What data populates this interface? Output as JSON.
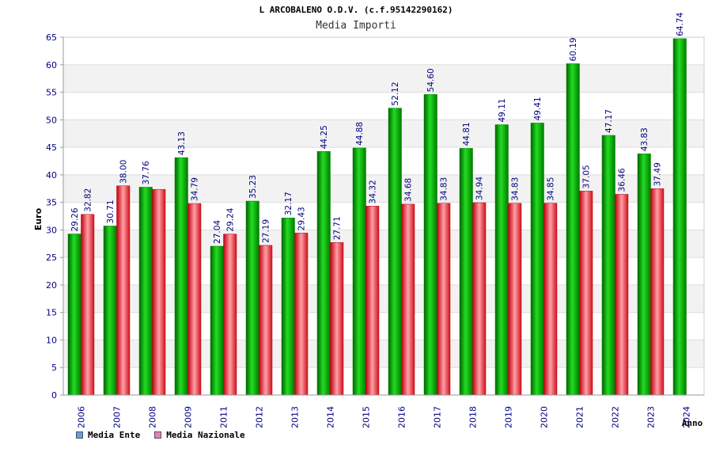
{
  "chart_data": {
    "type": "bar",
    "title": "L ARCOBALENO O.D.V. (c.f.95142290162)",
    "subtitle": "Media Importi",
    "ylabel": "Euro",
    "xlabel": "Anno",
    "ylim": [
      0,
      65
    ],
    "yticks": [
      "0",
      "5",
      "10",
      "15",
      "20",
      "25",
      "30",
      "35",
      "40",
      "45",
      "50",
      "55",
      "60",
      "65"
    ],
    "grid": true,
    "legend_position": "bottom-left",
    "categories": [
      "2006",
      "2007",
      "2008",
      "2009",
      "2011",
      "2012",
      "2013",
      "2014",
      "2015",
      "2016",
      "2017",
      "2018",
      "2019",
      "2020",
      "2021",
      "2022",
      "2023",
      "2024"
    ],
    "series": [
      {
        "name": "Media Ente",
        "color": "#00b400",
        "legend_color": "#5aa0e6",
        "values": [
          29.26,
          30.71,
          37.76,
          43.13,
          27.04,
          35.23,
          32.17,
          44.25,
          44.88,
          52.12,
          54.6,
          44.81,
          49.11,
          49.41,
          60.19,
          47.17,
          43.83,
          64.74
        ],
        "labels": [
          "29.26",
          "30.71",
          "37.76",
          "43.13",
          "27.04",
          "35.23",
          "32.17",
          "44.25",
          "44.88",
          "52.12",
          "54.60",
          "44.81",
          "49.11",
          "49.41",
          "60.19",
          "47.17",
          "43.83",
          "64.74"
        ]
      },
      {
        "name": "Media Nazionale",
        "color": "#e8202a",
        "legend_color": "#e680b4",
        "values": [
          32.82,
          38.0,
          37.36,
          34.79,
          29.24,
          27.19,
          29.43,
          27.71,
          34.32,
          34.68,
          34.83,
          34.94,
          34.83,
          34.85,
          37.05,
          36.46,
          37.49,
          null
        ],
        "labels": [
          "32.82",
          "38.00",
          "",
          "34.79",
          "29.24",
          "27.19",
          "29.43",
          "27.71",
          "34.32",
          "34.68",
          "34.83",
          "34.94",
          "34.83",
          "34.85",
          "37.05",
          "36.46",
          "37.49",
          ""
        ]
      }
    ]
  }
}
